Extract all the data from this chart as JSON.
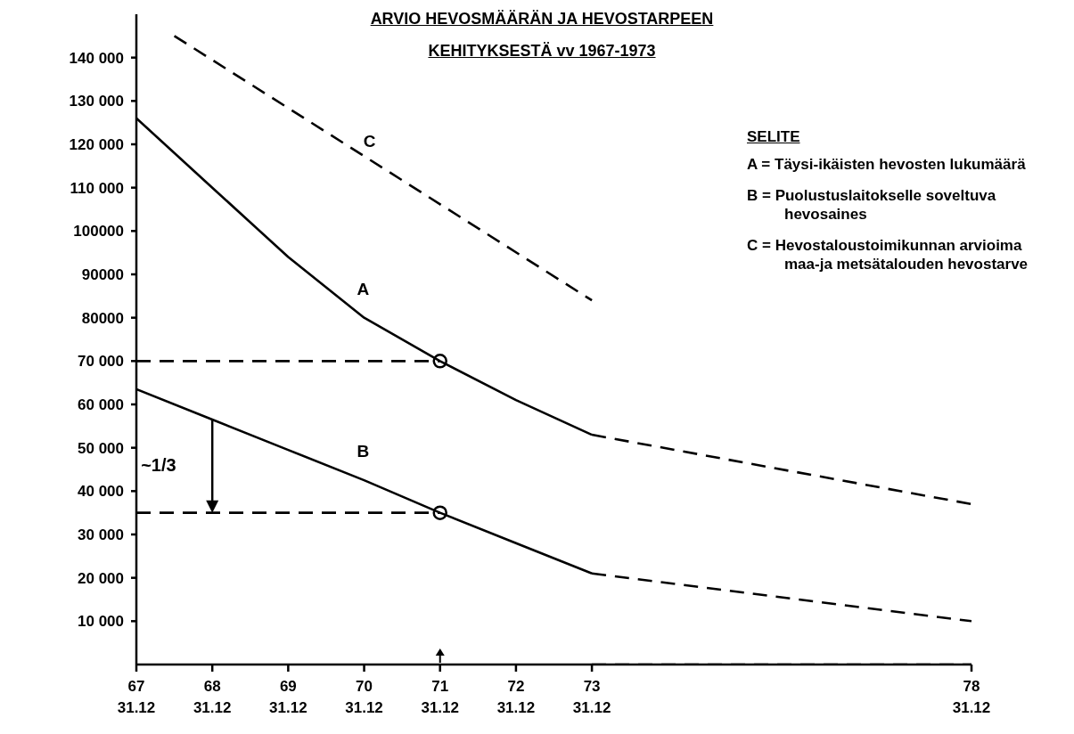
{
  "chart_data": {
    "type": "line",
    "title": "ARVIO HEVOSMÄÄRÄN JA HEVOSTARPEEN",
    "subtitle": "KEHITYKSESTÄ vv 1967-1973",
    "xlim": [
      67,
      78
    ],
    "xticks": [
      67,
      68,
      69,
      70,
      71,
      72,
      73,
      78
    ],
    "xlabel": "31.12",
    "ylim": [
      0,
      150000
    ],
    "yticks": [
      {
        "value": 10000,
        "label": "10 000"
      },
      {
        "value": 20000,
        "label": "20 000"
      },
      {
        "value": 30000,
        "label": "30 000"
      },
      {
        "value": 40000,
        "label": "40 000"
      },
      {
        "value": 50000,
        "label": "50 000"
      },
      {
        "value": 60000,
        "label": "60 000"
      },
      {
        "value": 70000,
        "label": "70 000"
      },
      {
        "value": 80000,
        "label": "80000"
      },
      {
        "value": 90000,
        "label": "90000"
      },
      {
        "value": 100000,
        "label": "100000"
      },
      {
        "value": 110000,
        "label": "110 000"
      },
      {
        "value": 120000,
        "label": "120 000"
      },
      {
        "value": 130000,
        "label": "130 000"
      },
      {
        "value": 140000,
        "label": "140 000"
      }
    ],
    "grid": false,
    "legend": false,
    "marker": "none",
    "line_style": "solid",
    "series": [
      {
        "name": "A",
        "color": "#000000",
        "x": [
          67,
          68,
          69,
          70,
          71,
          72,
          73
        ],
        "values": [
          126000,
          110000,
          94000,
          80000,
          70000,
          61000,
          53000
        ]
      },
      {
        "color": "#000000",
        "line_style": "dashed",
        "x": [
          73,
          78
        ],
        "values": [
          53000,
          37000
        ]
      },
      {
        "name": "B",
        "color": "#000000",
        "x": [
          67,
          68,
          69,
          70,
          71,
          72,
          73
        ],
        "values": [
          63500,
          56500,
          49500,
          42500,
          35000,
          28000,
          21000
        ]
      },
      {
        "color": "#000000",
        "line_style": "dashed",
        "x": [
          73,
          78
        ],
        "values": [
          21000,
          10000
        ]
      },
      {
        "name": "C",
        "color": "#000000",
        "line_style": "dashed",
        "x": [
          67.5,
          73
        ],
        "values": [
          145000,
          84000
        ]
      },
      {
        "color": "#000000",
        "line_style": "dashed",
        "x": [
          67,
          71
        ],
        "values": [
          70000,
          70000
        ]
      },
      {
        "color": "#000000",
        "line_style": "dashed",
        "x": [
          67,
          71
        ],
        "values": [
          35000,
          35000
        ]
      },
      {
        "color": "#000000",
        "line_style": "dashed",
        "x": [
          73,
          78
        ],
        "values": [
          0,
          0
        ]
      },
      {
        "type": "scatter",
        "color": "#000000",
        "marker": "circle",
        "x": [
          71,
          71
        ],
        "values": [
          70000,
          35000
        ]
      }
    ],
    "annotations": [
      "SELITE",
      "A = Täysi-ikäisten hevosten lukumäärä",
      "B = Puolustuslaitokselle soveltuva hevosaines",
      "C = Hevostaloustoimikunnan arvioima maa-ja metsätalouden hevostarve",
      "~1/3"
    ]
  }
}
